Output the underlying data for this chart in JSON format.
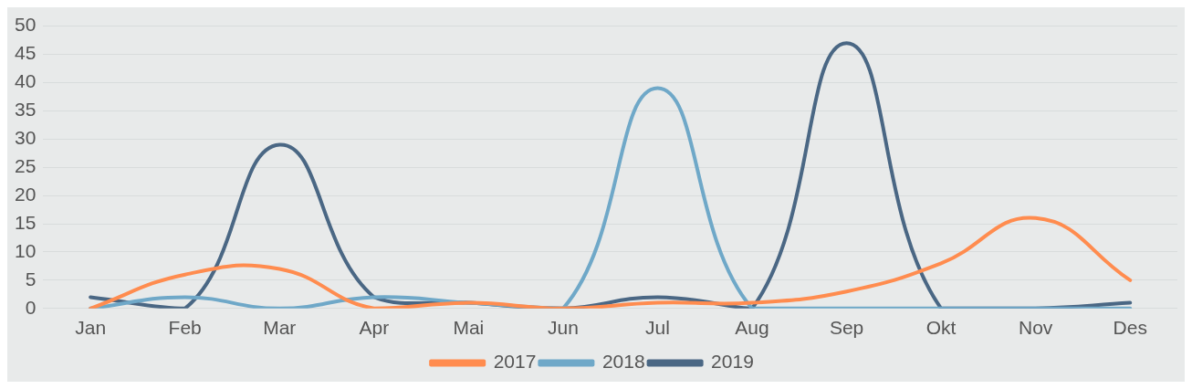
{
  "chart_data": {
    "type": "line",
    "categories": [
      "Jan",
      "Feb",
      "Mar",
      "Apr",
      "Mai",
      "Jun",
      "Jul",
      "Aug",
      "Sep",
      "Okt",
      "Nov",
      "Des"
    ],
    "series": [
      {
        "name": "2017",
        "color": "#ff8c4f",
        "values": [
          0,
          6,
          7,
          0,
          1,
          0,
          1,
          1,
          3,
          8,
          16,
          5
        ]
      },
      {
        "name": "2018",
        "color": "#6fa8c8",
        "values": [
          0,
          2,
          0,
          2,
          1,
          0,
          39,
          0,
          0,
          0,
          0,
          0
        ]
      },
      {
        "name": "2019",
        "color": "#4a6784",
        "values": [
          2,
          0,
          29,
          2,
          1,
          0,
          2,
          0,
          47,
          0,
          0,
          1
        ]
      }
    ],
    "ylim": [
      0,
      50
    ],
    "yticks": [
      0,
      5,
      10,
      15,
      20,
      25,
      30,
      35,
      40,
      45,
      50
    ],
    "grid": "y",
    "legend": "bottom",
    "marker": "none",
    "line_style": "solid"
  }
}
